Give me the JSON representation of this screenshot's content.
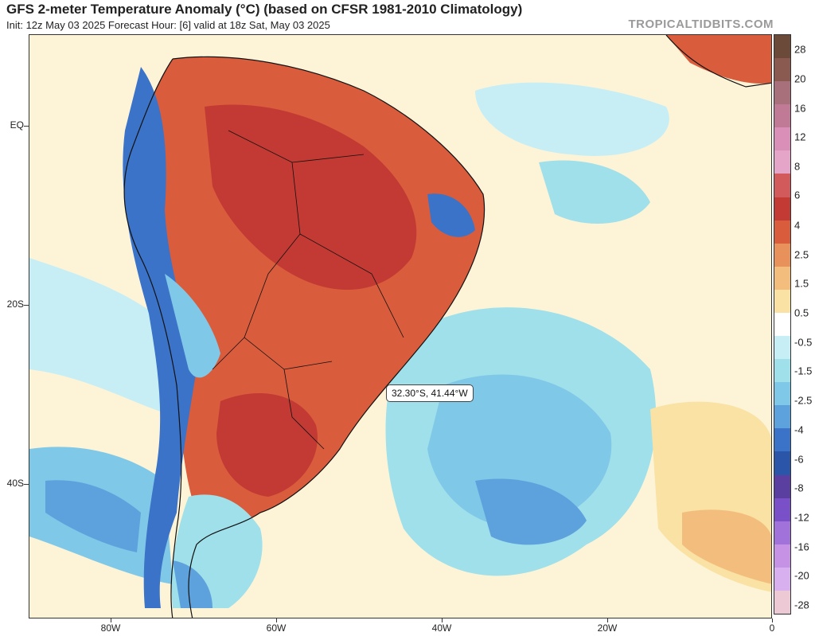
{
  "header": {
    "title": "GFS 2-meter Temperature Anomaly (°C) (based on CFSR 1981-2010 Climatology)",
    "subtitle": "Init: 12z May 03 2025   Forecast Hour: [6]   valid at 18z Sat, May 03 2025",
    "brand": "TROPICALTIDBITS.COM"
  },
  "map": {
    "lat_labels": [
      "EQ",
      "20S",
      "40S"
    ],
    "lon_labels": [
      "80W",
      "60W",
      "40W",
      "20W",
      "0"
    ],
    "tooltip": "32.30°S, 41.44°W"
  },
  "colorbar": {
    "labels": [
      "28",
      "20",
      "16",
      "12",
      "8",
      "6",
      "4",
      "2.5",
      "1.5",
      "0.5",
      "-0.5",
      "-1.5",
      "-2.5",
      "-4",
      "-6",
      "-8",
      "-12",
      "-16",
      "-20",
      "-28"
    ],
    "colors": [
      "#6b4a3a",
      "#8a5a50",
      "#a8707a",
      "#c07a95",
      "#d98fb8",
      "#e4a5c8",
      "#d25a5a",
      "#c23a33",
      "#d95c3c",
      "#e8915a",
      "#f3be7d",
      "#f9e2a3",
      "#fff",
      "#c8eef5",
      "#9fe0ea",
      "#80c8e8",
      "#5ea2dd",
      "#3b73c8",
      "#2b55a8",
      "#5a3ea0",
      "#7a50c8",
      "#a272db",
      "#c692e6",
      "#d9b0ef",
      "#ecc9d4"
    ]
  }
}
